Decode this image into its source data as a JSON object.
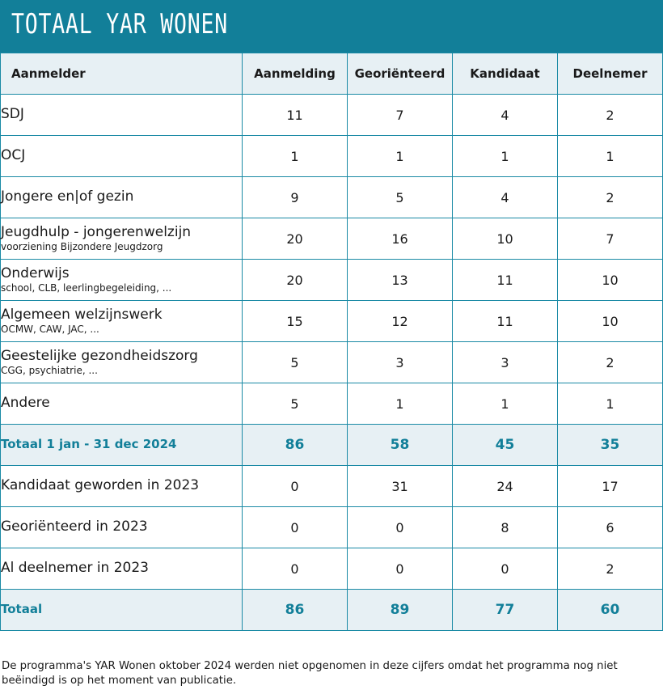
{
  "title": "TOTAAL YAR WONEN",
  "table": {
    "headers": [
      "Aanmelder",
      "Aanmelding",
      "Georiënteerd",
      "Kandidaat",
      "Deelnemer"
    ],
    "rows": [
      {
        "label": "SDJ",
        "sub": "",
        "values": [
          "11",
          "7",
          "4",
          "2"
        ]
      },
      {
        "label": "OCJ",
        "sub": "",
        "values": [
          "1",
          "1",
          "1",
          "1"
        ]
      },
      {
        "label": "Jongere en|of gezin",
        "sub": "",
        "values": [
          "9",
          "5",
          "4",
          "2"
        ]
      },
      {
        "label": "Jeugdhulp - jongerenwelzijn",
        "sub": "voorziening Bijzondere Jeugdzorg",
        "values": [
          "20",
          "16",
          "10",
          "7"
        ]
      },
      {
        "label": "Onderwijs",
        "sub": "school, CLB, leerlingbegeleiding, ...",
        "values": [
          "20",
          "13",
          "11",
          "10"
        ]
      },
      {
        "label": "Algemeen welzijnswerk",
        "sub": "OCMW, CAW, JAC, ...",
        "values": [
          "15",
          "12",
          "11",
          "10"
        ]
      },
      {
        "label": "Geestelijke gezondheidszorg",
        "sub": "CGG, psychiatrie, ...",
        "values": [
          "5",
          "3",
          "3",
          "2"
        ]
      },
      {
        "label": "Andere",
        "sub": "",
        "values": [
          "5",
          "1",
          "1",
          "1"
        ]
      }
    ],
    "subtotal": {
      "label": "Totaal 1 jan - 31 dec 2024",
      "values": [
        "86",
        "58",
        "45",
        "35"
      ]
    },
    "rows2": [
      {
        "label": "Kandidaat geworden in 2023",
        "values": [
          "0",
          "31",
          "24",
          "17"
        ]
      },
      {
        "label": "Georiënteerd in 2023",
        "values": [
          "0",
          "0",
          "8",
          "6"
        ]
      },
      {
        "label": "Al deelnemer in 2023",
        "values": [
          "0",
          "0",
          "0",
          "2"
        ]
      }
    ],
    "total": {
      "label": "Totaal",
      "values": [
        "86",
        "89",
        "77",
        "60"
      ]
    }
  },
  "footnote": "De programma's YAR Wonen oktober 2024 werden niet opgenomen in deze cijfers omdat het programma nog niet beëindigd is op het moment van publicatie.",
  "colors": {
    "accent": "#127f99",
    "header_bg": "#e7f0f4",
    "border": "#1a8aa5"
  }
}
